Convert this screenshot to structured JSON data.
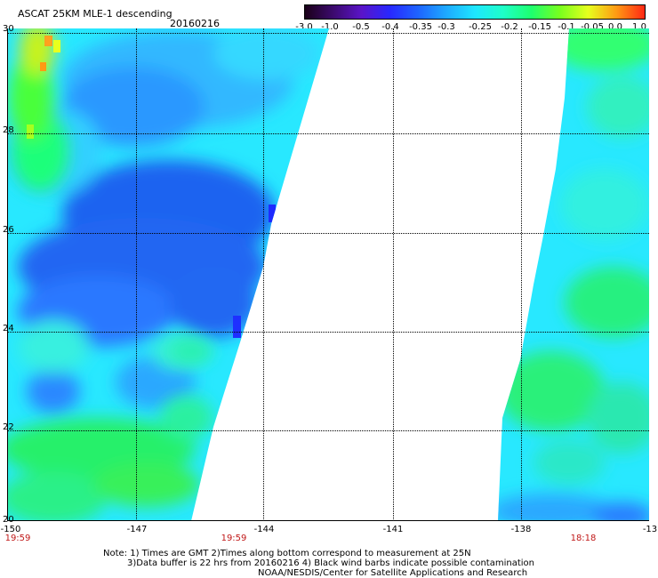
{
  "header": {
    "title": "ASCAT 25KM MLE-1 descending",
    "date": "20160216"
  },
  "colorbar": {
    "labels": [
      "-3.0",
      "-1.0",
      "-0.5",
      "-0.4",
      "-0.35",
      "-0.3",
      "-0.25",
      "-0.2",
      "-0.15",
      "-0.1",
      "-0.05",
      "0.0",
      "1.0"
    ],
    "colors": [
      "#1a0018",
      "#3c0a6e",
      "#5a14c8",
      "#2828ff",
      "#1e64ff",
      "#1eaaff",
      "#1ee6ff",
      "#1effc8",
      "#1eff6e",
      "#78ff1e",
      "#e6ff1e",
      "#ff9a14",
      "#ff2814"
    ]
  },
  "map": {
    "lat_labels": [
      "30",
      "28",
      "26",
      "24",
      "22",
      "20"
    ],
    "lon_labels": [
      "-150",
      "-147",
      "-144",
      "-141",
      "-138",
      "-13"
    ],
    "times": {
      "left": "19:59",
      "center": "19:59",
      "right": "18:18"
    }
  },
  "notes": {
    "line1": "Note: 1) Times are GMT 2)Times along bottom correspond to measurement at 25N",
    "line2": "3)Data buffer is 22 hrs from 20160216 4) Black wind barbs indicate possible contamination",
    "line3": "NOAA/NESDIS/Center for Satellite Applications and Research"
  }
}
